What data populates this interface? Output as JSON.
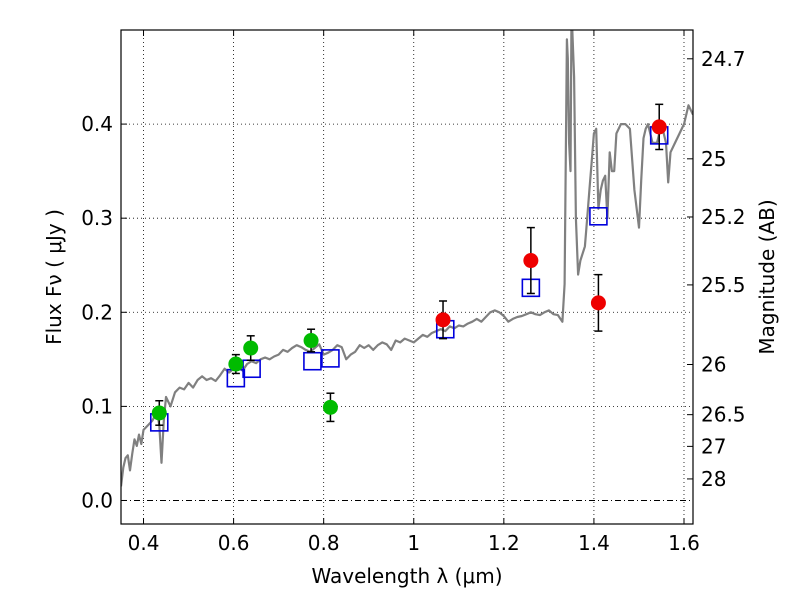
{
  "chart_data": {
    "type": "scatter",
    "xlabel": "Wavelength  λ (μm)",
    "ylabel": "Flux  Fν  ( μJy )",
    "y2label": "Magnitude (AB)",
    "xlim": [
      0.35,
      1.62
    ],
    "ylim": [
      -0.025,
      0.5
    ],
    "grid": true,
    "x_ticks": [
      0.4,
      0.6,
      0.8,
      1.0,
      1.2,
      1.4,
      1.6
    ],
    "x_tick_labels": [
      "0.4",
      "0.6",
      "0.8",
      "1",
      "1.2",
      "1.4",
      "1.6"
    ],
    "y_ticks": [
      0.0,
      0.1,
      0.2,
      0.3,
      0.4
    ],
    "y_tick_labels": [
      "0.0",
      "0.1",
      "0.2",
      "0.3",
      "0.4"
    ],
    "mag_ticks": [
      {
        "flux": 0.4694,
        "label": "24.7"
      },
      {
        "flux": 0.3631,
        "label": "25"
      },
      {
        "flux": 0.3013,
        "label": "25.2"
      },
      {
        "flux": 0.2291,
        "label": "25.5"
      },
      {
        "flux": 0.1445,
        "label": "26"
      },
      {
        "flux": 0.0912,
        "label": "26.5"
      },
      {
        "flux": 0.0575,
        "label": "27"
      },
      {
        "flux": 0.0229,
        "label": "28"
      }
    ],
    "colors": {
      "model": "#808080",
      "green": "#00bb00",
      "red": "#ee0000",
      "box": "#0000dd",
      "errorbar": "#000000"
    },
    "model_sed": {
      "x": [
        0.35,
        0.355,
        0.36,
        0.365,
        0.37,
        0.375,
        0.38,
        0.385,
        0.39,
        0.395,
        0.4,
        0.41,
        0.42,
        0.43,
        0.435,
        0.44,
        0.445,
        0.45,
        0.46,
        0.47,
        0.48,
        0.49,
        0.5,
        0.51,
        0.52,
        0.53,
        0.54,
        0.55,
        0.56,
        0.57,
        0.58,
        0.59,
        0.6,
        0.61,
        0.62,
        0.63,
        0.64,
        0.65,
        0.66,
        0.67,
        0.68,
        0.69,
        0.7,
        0.71,
        0.72,
        0.73,
        0.74,
        0.75,
        0.76,
        0.77,
        0.78,
        0.79,
        0.8,
        0.81,
        0.82,
        0.83,
        0.84,
        0.85,
        0.86,
        0.87,
        0.88,
        0.89,
        0.9,
        0.91,
        0.92,
        0.93,
        0.94,
        0.95,
        0.96,
        0.97,
        0.98,
        0.99,
        1.0,
        1.01,
        1.02,
        1.03,
        1.04,
        1.05,
        1.06,
        1.07,
        1.08,
        1.09,
        1.1,
        1.11,
        1.12,
        1.13,
        1.14,
        1.15,
        1.16,
        1.17,
        1.18,
        1.19,
        1.2,
        1.21,
        1.22,
        1.23,
        1.24,
        1.25,
        1.26,
        1.27,
        1.28,
        1.29,
        1.3,
        1.31,
        1.32,
        1.33,
        1.335,
        1.34,
        1.342,
        1.345,
        1.348,
        1.35,
        1.352,
        1.356,
        1.36,
        1.365,
        1.37,
        1.38,
        1.385,
        1.39,
        1.395,
        1.4,
        1.405,
        1.41,
        1.415,
        1.42,
        1.425,
        1.43,
        1.435,
        1.44,
        1.445,
        1.45,
        1.46,
        1.47,
        1.48,
        1.49,
        1.5,
        1.505,
        1.51,
        1.515,
        1.52,
        1.53,
        1.54,
        1.55,
        1.56,
        1.565,
        1.57,
        1.58,
        1.59,
        1.6,
        1.61,
        1.62
      ],
      "y": [
        0.015,
        0.035,
        0.045,
        0.048,
        0.032,
        0.05,
        0.065,
        0.058,
        0.07,
        0.06,
        0.075,
        0.08,
        0.085,
        0.095,
        0.08,
        0.04,
        0.085,
        0.11,
        0.1,
        0.115,
        0.12,
        0.118,
        0.125,
        0.12,
        0.128,
        0.132,
        0.128,
        0.13,
        0.127,
        0.133,
        0.14,
        0.136,
        0.14,
        0.142,
        0.138,
        0.145,
        0.148,
        0.146,
        0.15,
        0.152,
        0.15,
        0.153,
        0.155,
        0.16,
        0.158,
        0.162,
        0.165,
        0.163,
        0.16,
        0.158,
        0.162,
        0.166,
        0.155,
        0.157,
        0.16,
        0.165,
        0.163,
        0.15,
        0.155,
        0.158,
        0.165,
        0.162,
        0.165,
        0.16,
        0.165,
        0.168,
        0.166,
        0.16,
        0.17,
        0.168,
        0.172,
        0.17,
        0.168,
        0.172,
        0.176,
        0.174,
        0.178,
        0.18,
        0.182,
        0.18,
        0.185,
        0.183,
        0.186,
        0.185,
        0.188,
        0.19,
        0.193,
        0.19,
        0.195,
        0.2,
        0.202,
        0.2,
        0.196,
        0.19,
        0.193,
        0.195,
        0.196,
        0.198,
        0.2,
        0.198,
        0.197,
        0.2,
        0.202,
        0.198,
        0.197,
        0.19,
        0.23,
        0.49,
        0.47,
        0.38,
        0.35,
        0.5,
        0.5,
        0.45,
        0.3,
        0.24,
        0.255,
        0.27,
        0.3,
        0.33,
        0.36,
        0.39,
        0.395,
        0.31,
        0.33,
        0.34,
        0.345,
        0.3,
        0.37,
        0.35,
        0.35,
        0.39,
        0.4,
        0.4,
        0.395,
        0.33,
        0.29,
        0.34,
        0.385,
        0.395,
        0.4,
        0.38,
        0.38,
        0.4,
        0.38,
        0.338,
        0.37,
        0.38,
        0.39,
        0.4,
        0.42,
        0.41
      ]
    },
    "green_points": {
      "x": [
        0.435,
        0.605,
        0.638,
        0.772,
        0.815
      ],
      "y": [
        0.093,
        0.145,
        0.162,
        0.17,
        0.099
      ],
      "yerr": [
        0.013,
        0.01,
        0.013,
        0.012,
        0.015
      ]
    },
    "red_points": {
      "x": [
        1.065,
        1.26,
        1.41,
        1.545
      ],
      "y": [
        0.192,
        0.255,
        0.21,
        0.397
      ],
      "yerr": [
        0.02,
        0.035,
        0.03,
        0.024
      ]
    },
    "model_boxes": {
      "x": [
        0.435,
        0.605,
        0.64,
        0.775,
        0.815,
        1.07,
        1.26,
        1.41,
        1.545
      ],
      "y": [
        0.083,
        0.13,
        0.14,
        0.148,
        0.151,
        0.182,
        0.226,
        0.302,
        0.388
      ]
    }
  }
}
